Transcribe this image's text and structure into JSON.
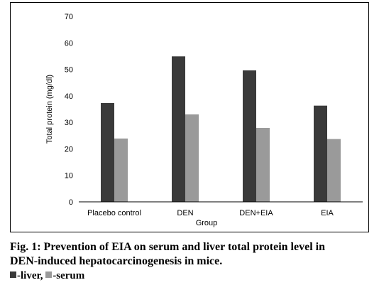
{
  "chart_data": {
    "type": "bar",
    "categories": [
      "Placebo control",
      "DEN",
      "DEN+EIA",
      "EIA"
    ],
    "series": [
      {
        "name": "liver",
        "values": [
          37.3,
          54.9,
          49.6,
          36.3
        ],
        "color": "#3a3a3a"
      },
      {
        "name": "serum",
        "values": [
          23.9,
          33.0,
          27.9,
          23.7
        ],
        "color": "#9a9a9a"
      }
    ],
    "xlabel": "Group",
    "ylabel": "Total protein (mg/dl)",
    "ylim": [
      0,
      70
    ],
    "yticks": [
      0,
      10,
      20,
      30,
      40,
      50,
      60,
      70
    ],
    "grid": false
  },
  "caption": {
    "line1": "Fig. 1: Prevention of EIA on serum and liver total protein level in",
    "line2": "DEN-induced hepatocarcinogenesis in mice.",
    "legend_liver": "-liver, ",
    "legend_serum": "-serum"
  }
}
